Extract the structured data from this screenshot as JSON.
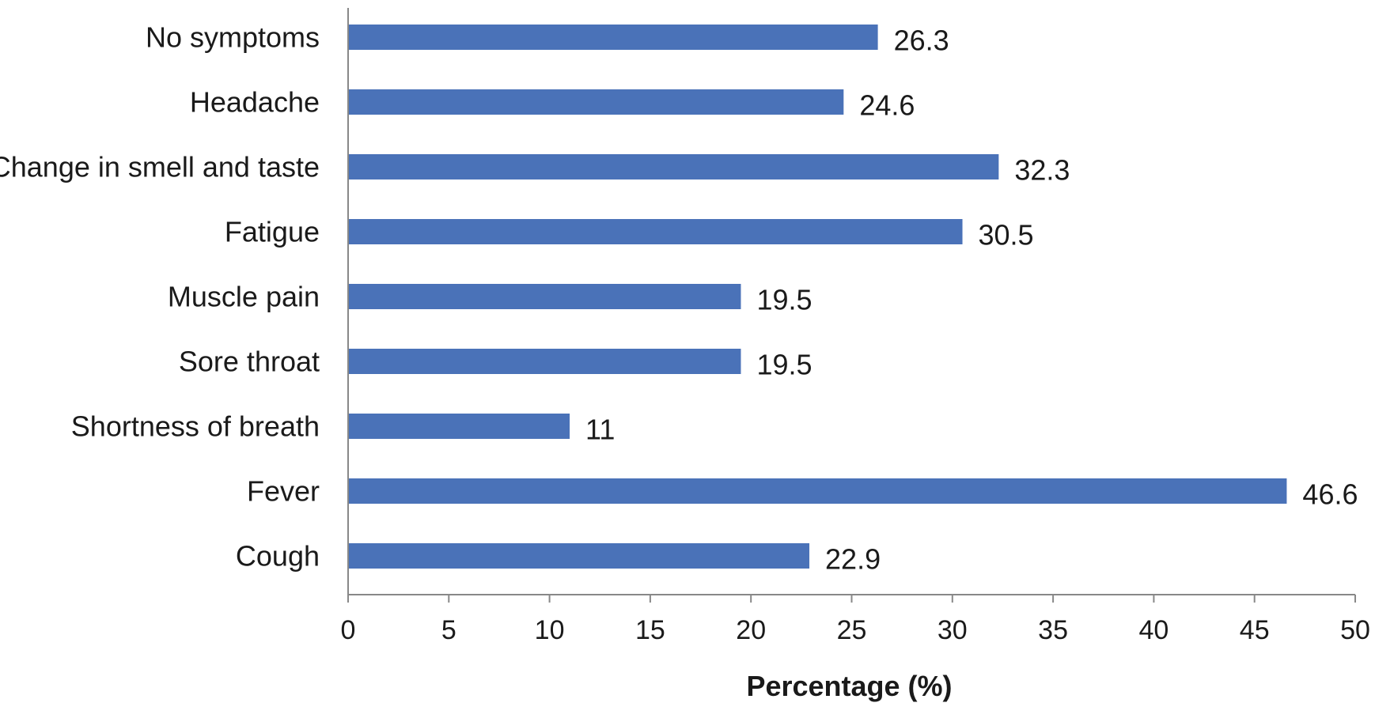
{
  "chart_data": {
    "type": "bar",
    "orientation": "horizontal",
    "title": "",
    "xlabel": "Percentage (%)",
    "ylabel": "",
    "xlim": [
      0,
      50
    ],
    "xticks": [
      0,
      5,
      10,
      15,
      20,
      25,
      30,
      35,
      40,
      45,
      50
    ],
    "grid": false,
    "legend": "none",
    "bar_color": "#4a72b8",
    "categories": [
      "No symptoms",
      "Headache",
      "Change in smell and taste",
      "Fatigue",
      "Muscle pain",
      "Sore throat",
      "Shortness of breath",
      "Fever",
      "Cough"
    ],
    "values": [
      26.3,
      24.6,
      32.3,
      30.5,
      19.5,
      19.5,
      11,
      46.6,
      22.9
    ],
    "value_labels": [
      "26.3",
      "24.6",
      "32.3",
      "30.5",
      "19.5",
      "19.5",
      "11",
      "46.6",
      "22.9"
    ]
  }
}
